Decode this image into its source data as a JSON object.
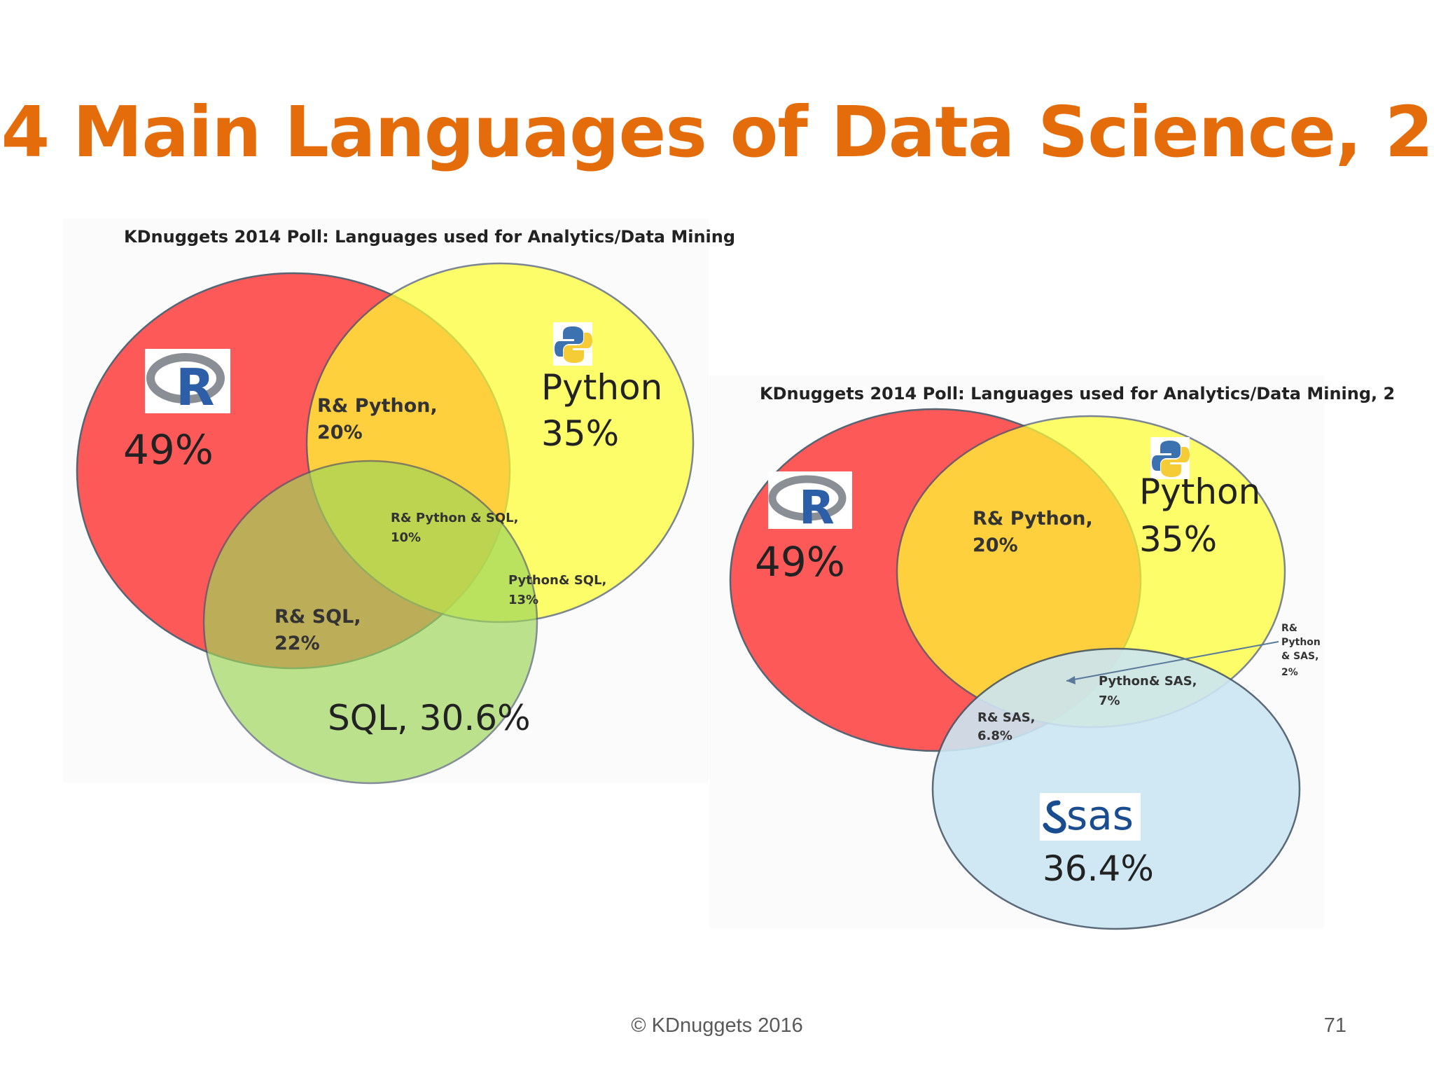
{
  "slide": {
    "title": "4 Main Languages of Data Science, 2",
    "copyright": "© KDnuggets 2016",
    "page_number": "71"
  },
  "colors": {
    "title": "#e46c0a",
    "r": "#ff4d4d",
    "python": "#ffff33",
    "sql": "#a9dc70",
    "sas": "#cce6f3",
    "overlap_r_python": "#fbb514",
    "overlap_r_sql": "#e14d2c"
  },
  "venn_left": {
    "title": "KDnuggets 2014 Poll: Languages used for Analytics/Data Mining",
    "sets": [
      {
        "name": "R",
        "icon": "r-logo",
        "value": "49%"
      },
      {
        "name": "Python",
        "icon": "python-logo",
        "value": "35%"
      },
      {
        "name": "SQL",
        "value": "SQL, 30.6%"
      }
    ],
    "overlaps": {
      "r_python": [
        "R& Python,",
        "20%"
      ],
      "r_python_sql": [
        "R& Python  & SQL,",
        "10%"
      ],
      "python_sql": [
        "Python& SQL,",
        "13%"
      ],
      "r_sql": [
        "R& SQL,",
        "22%"
      ]
    }
  },
  "venn_right": {
    "title": "KDnuggets 2014 Poll: Languages used for Analytics/Data Mining, 2",
    "sets": [
      {
        "name": "R",
        "icon": "r-logo",
        "value": "49%"
      },
      {
        "name": "Python",
        "icon": "python-logo",
        "value": "35%"
      },
      {
        "name": "sas",
        "icon": "sas-logo",
        "value": "36.4%"
      }
    ],
    "overlaps": {
      "r_python": [
        "R& Python,",
        "20%"
      ],
      "python_sas": [
        "Python& SAS,",
        "7%"
      ],
      "r_sas": [
        "R& SAS,",
        "6.8%"
      ],
      "r_python_sas": [
        "R&",
        "Python",
        "& SAS,",
        "2%"
      ]
    }
  }
}
